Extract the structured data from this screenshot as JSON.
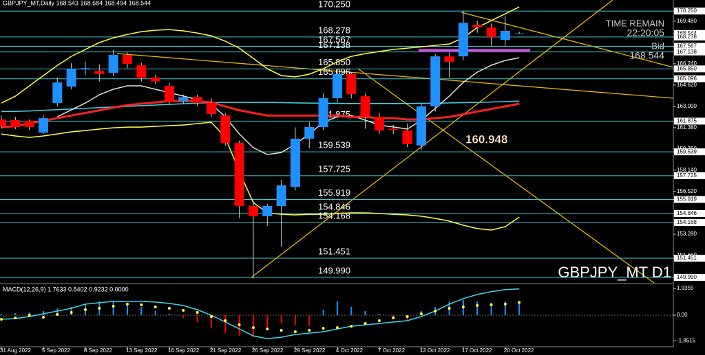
{
  "chart_data": {
    "type": "candlestick",
    "title": "GBPJPY_MT,Daily  168.543 168.684 168.494 168.544",
    "symbol_label": "GBPJPY_MT D1",
    "time_remain_label": "TIME REMAIN",
    "time_remain": "22:20:05",
    "bid_label": "Bid",
    "bid": 168.544,
    "marker_value": 160.948,
    "highlight_level": 167.27,
    "up_color": "#1e90ff",
    "down_color": "#ff0000",
    "level_color": "#40c8d0",
    "categories": [
      "31 Aug 2022",
      null,
      null,
      "5 Sep 2022",
      null,
      null,
      "8 Sep 2022",
      null,
      null,
      "13 Sep 2022",
      null,
      null,
      "16 Sep 2022",
      null,
      null,
      "21 Sep 2022",
      null,
      null,
      "26 Sep 2022",
      null,
      null,
      "29 Sep 2022",
      null,
      null,
      "4 Oct 2022",
      null,
      null,
      "7 Oct 2022",
      null,
      null,
      "12 Oct 2022",
      null,
      null,
      "17 Oct 2022",
      null,
      null,
      "20 Oct 2022",
      null
    ],
    "open": [
      162.0,
      161.95,
      161.9,
      161.0,
      163.25,
      164.5,
      165.8,
      165.7,
      165.55,
      166.91,
      166.12,
      165.2,
      164.56,
      163.4,
      163.72,
      163.25,
      162.31,
      160.22,
      155.42,
      154.64,
      155.42,
      156.88,
      160.54,
      161.43,
      163.62,
      165.45,
      163.77,
      162.21,
      161.3,
      161.16,
      160.02,
      163.0,
      166.8,
      166.8,
      169.2,
      169.0,
      168.06,
      168.543
    ],
    "high": [
      162.3,
      162.21,
      162.0,
      162.3,
      165.2,
      166.3,
      166.4,
      166.2,
      167.3,
      167.1,
      166.3,
      165.4,
      164.8,
      163.9,
      163.9,
      163.6,
      162.5,
      160.4,
      155.8,
      155.6,
      157.4,
      161.4,
      161.8,
      164.0,
      165.85,
      165.6,
      164.0,
      162.5,
      161.6,
      161.7,
      163.2,
      167.0,
      167.1,
      170.25,
      169.5,
      169.3,
      169.9,
      168.684
    ],
    "low": [
      161.3,
      161.27,
      161.2,
      160.9,
      162.99,
      164.3,
      165.4,
      164.9,
      165.3,
      165.9,
      164.9,
      164.7,
      163.1,
      163.2,
      163.0,
      162.2,
      160.0,
      154.48,
      149.9,
      153.9,
      152.3,
      156.6,
      159.8,
      161.2,
      163.3,
      163.6,
      161.3,
      160.9,
      160.9,
      159.9,
      159.7,
      162.6,
      165.2,
      166.5,
      168.6,
      167.6,
      167.6,
      168.494
    ],
    "close": [
      161.5,
      161.43,
      161.43,
      162.1,
      164.82,
      165.86,
      165.9,
      165.45,
      166.91,
      166.23,
      165.18,
      164.9,
      163.36,
      163.7,
      163.25,
      162.42,
      160.22,
      155.42,
      154.64,
      155.42,
      156.99,
      160.54,
      161.43,
      163.62,
      165.45,
      163.93,
      162.21,
      161.16,
      161.2,
      160.12,
      163.0,
      166.8,
      166.39,
      169.36,
      169.0,
      168.27,
      168.74,
      168.544
    ],
    "overlays": [
      {
        "color": "#ffff40",
        "values": [
          163.25,
          163.77,
          164.56,
          165.34,
          166.12,
          166.8,
          167.33,
          167.85,
          168.21,
          168.47,
          168.68,
          168.79,
          168.84,
          168.74,
          168.58,
          168.37,
          167.95,
          167.43,
          166.65,
          165.86,
          165.34,
          165.24,
          165.45,
          165.86,
          166.39,
          166.8,
          167.01,
          167.17,
          167.33,
          167.43,
          167.53,
          167.64,
          167.74,
          168.21,
          169.0,
          169.52,
          170.04,
          170.56
        ]
      },
      {
        "color": "#ffff40",
        "values": [
          160.9,
          160.75,
          160.64,
          160.75,
          160.9,
          161.06,
          161.16,
          161.27,
          161.37,
          161.42,
          161.42,
          161.48,
          161.53,
          161.58,
          161.69,
          161.79,
          160.64,
          158.03,
          155.68,
          154.9,
          154.79,
          154.74,
          154.79,
          154.79,
          154.85,
          154.9,
          154.9,
          154.85,
          154.79,
          154.74,
          154.64,
          154.48,
          154.27,
          153.96,
          153.7,
          153.59,
          153.85,
          154.58
        ]
      },
      {
        "color": "#40d8e8",
        "values": [
          162.6,
          162.62,
          162.65,
          162.7,
          162.75,
          162.8,
          162.85,
          162.9,
          162.95,
          163.0,
          163.05,
          163.1,
          163.15,
          163.2,
          163.25,
          163.28,
          163.3,
          163.3,
          163.3,
          163.3,
          163.28,
          163.26,
          163.25,
          163.24,
          163.23,
          163.22,
          163.22,
          163.22,
          163.22,
          163.22,
          163.23,
          163.24,
          163.26,
          163.28,
          163.3,
          163.33,
          163.36,
          163.4
        ]
      },
      {
        "color": "#e8e0d8",
        "values": [
          null,
          null,
          null,
          null,
          162.21,
          162.73,
          163.25,
          163.88,
          164.3,
          164.56,
          164.56,
          164.3,
          164.04,
          163.78,
          163.51,
          163.15,
          162.21,
          160.9,
          159.86,
          159.34,
          159.49,
          160.12,
          160.9,
          161.79,
          162.21,
          162.31,
          161.95,
          161.58,
          161.43,
          161.27,
          161.95,
          162.84,
          163.78,
          164.82,
          165.6,
          166.13,
          166.49,
          166.7
        ]
      },
      {
        "color": "#ff2020",
        "values": [
          161.4,
          161.5,
          161.7,
          161.9,
          162.1,
          162.3,
          162.5,
          162.7,
          162.9,
          163.1,
          163.2,
          163.3,
          163.4,
          163.4,
          163.4,
          163.3,
          163.0,
          162.7,
          162.5,
          162.3,
          162.3,
          162.3,
          162.3,
          162.3,
          162.3,
          162.2,
          162.2,
          162.1,
          162.1,
          162.0,
          162.0,
          162.1,
          162.2,
          162.4,
          162.6,
          162.8,
          163.0,
          163.2
        ]
      }
    ],
    "ylim": [
      149.57,
      171.09
    ],
    "yticks": [
      {
        "value": 170.25,
        "label": "170.250"
      },
      {
        "value": 169.48,
        "label": "169.480"
      },
      168.544,
      168.278,
      167.567,
      167.138,
      {
        "value": 166.24,
        "label": "166.240"
      },
      {
        "value": 165.85,
        "label": "165.850"
      },
      165.096,
      {
        "value": 164.62,
        "label": "164.620"
      },
      {
        "value": 163,
        "label": "163.000"
      },
      161.875,
      {
        "value": 161.38,
        "label": "161.380"
      },
      {
        "value": 159.76,
        "label": "159.760"
      },
      159.539,
      {
        "value": 158.14,
        "label": "158.140"
      },
      157.725,
      {
        "value": 156.52,
        "label": "156.520"
      },
      155.919,
      154.846,
      154.168,
      {
        "value": 153.28,
        "label": "153.280"
      },
      {
        "value": 151.66,
        "label": "151.660"
      },
      151.451,
      {
        "value": 149.99,
        "label": "149.990"
      }
    ],
    "levels": [
      {
        "value": 170.25,
        "label": "170.250"
      },
      168.278,
      167.567,
      167.138,
      {
        "value": 165.85,
        "label": "165.850"
      },
      165.096,
      161.875,
      159.539,
      157.725,
      155.919,
      154.846,
      154.168,
      151.451,
      {
        "value": 149.99,
        "label": "149.990"
      }
    ],
    "macd": {
      "title": "MACD(12,26,9) 1.7633 0.8402 0.9232 0.0000",
      "ylim": [
        -2.19,
        2.14
      ],
      "yticks": [
        1.9355,
        {
          "value": 0,
          "label": "0.00"
        },
        -1.8515
      ],
      "line_color": "#40d8e8",
      "dot_color": "#ffff40",
      "histogram": [
        0.1,
        0.15,
        0.2,
        0.3,
        0.5,
        0.6,
        0.8,
        1.0,
        1.0,
        0.9,
        0.6,
        0.3,
        0.1,
        -0.2,
        -0.5,
        -0.9,
        -1.3,
        -1.5,
        -1.6,
        -1.1,
        -0.6,
        -0.7,
        -0.8,
        0.4,
        1.0,
        0.6,
        0.3,
        0.1,
        -0.3,
        -0.4,
        0.3,
        0.6,
        1.0,
        1.1,
        1.0,
        0.9,
        1.0,
        1.0
      ],
      "line": [
        -0.3,
        -0.25,
        -0.1,
        0.1,
        0.3,
        0.5,
        0.8,
        0.9,
        1.0,
        1.0,
        1.0,
        0.95,
        0.85,
        0.7,
        0.4,
        0.0,
        -0.5,
        -1.0,
        -1.5,
        -1.7,
        -1.6,
        -1.4,
        -1.3,
        -1.2,
        -1.0,
        -0.8,
        -0.7,
        -0.6,
        -0.5,
        -0.4,
        -0.1,
        0.3,
        0.8,
        1.2,
        1.5,
        1.7,
        1.85,
        1.9
      ],
      "dots": [
        -0.3,
        -0.2,
        0.0,
        -0.15,
        0.05,
        0.2,
        0.4,
        0.5,
        0.65,
        0.8,
        0.75,
        0.6,
        0.5,
        0.35,
        0.2,
        -0.1,
        -0.4,
        -0.7,
        -0.9,
        -1.0,
        -1.1,
        -1.2,
        -1.1,
        -0.95,
        -0.9,
        -0.8,
        -0.6,
        -0.4,
        -0.2,
        -0.1,
        0.1,
        0.3,
        0.5,
        0.6,
        0.7,
        0.75,
        0.8,
        0.92
      ]
    }
  }
}
